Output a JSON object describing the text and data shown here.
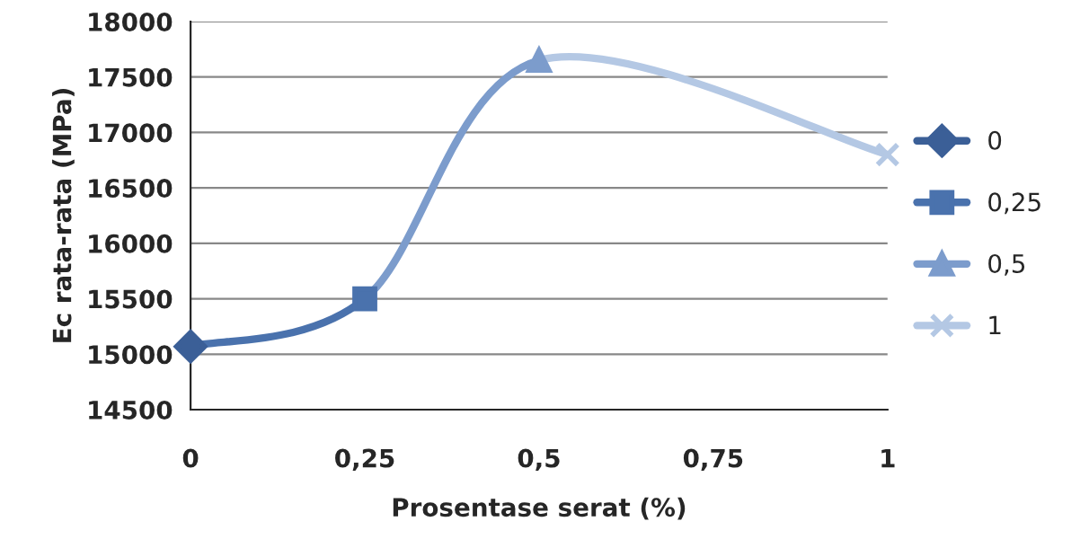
{
  "chart_data": {
    "type": "line",
    "xlabel": "Prosentase serat (%)",
    "ylabel": "Ec rata-rata (MPa)",
    "xlim": [
      0,
      1
    ],
    "xticks": [
      {
        "value": 0,
        "label": "0"
      },
      {
        "value": 0.25,
        "label": "0,25"
      },
      {
        "value": 0.5,
        "label": "0,5"
      },
      {
        "value": 0.75,
        "label": "0,75"
      },
      {
        "value": 1,
        "label": "1"
      }
    ],
    "ylim": [
      14500,
      18000
    ],
    "yticks": [
      14500,
      15000,
      15500,
      16000,
      16500,
      17000,
      17500,
      18000
    ],
    "grid": "y",
    "legend": "right",
    "line_style": "solid",
    "series": [
      {
        "name": "0",
        "color": "#3b5f97",
        "marker": "diamond",
        "x": [
          0
        ],
        "values": [
          15070
        ]
      },
      {
        "name": "0,25",
        "color": "#4a72ad",
        "marker": "square",
        "x": [
          0,
          0.25
        ],
        "values": [
          15070,
          15500
        ]
      },
      {
        "name": "0,5",
        "color": "#7c9ccc",
        "marker": "triangle",
        "x": [
          0.25,
          0.5
        ],
        "values": [
          15500,
          17650
        ]
      },
      {
        "name": "1",
        "color": "#b4c8e4",
        "marker": "cross",
        "x": [
          0.5,
          1
        ],
        "values": [
          17650,
          16800
        ]
      }
    ]
  }
}
